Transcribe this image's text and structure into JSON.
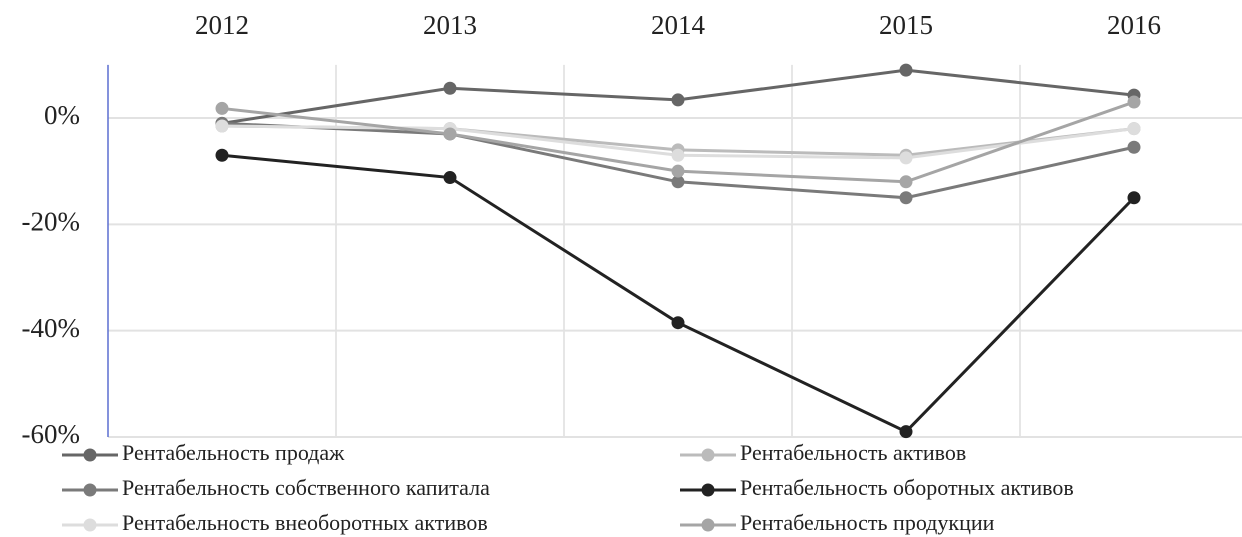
{
  "chart_data": {
    "type": "line",
    "categories": [
      "2012",
      "2013",
      "2014",
      "2015",
      "2016"
    ],
    "series": [
      {
        "name": "Рентабельность продаж",
        "color": "#666666",
        "values": [
          -1,
          5.6,
          3.4,
          9,
          4.3
        ]
      },
      {
        "name": "Рентабельность активов",
        "color": "#bbbbbb",
        "values": [
          -1.5,
          -2,
          -6,
          -7,
          -2
        ]
      },
      {
        "name": "Рентабельность собственного капитала",
        "color": "#7a7a7a",
        "values": [
          -1,
          -3,
          -12,
          -15,
          -5.5
        ]
      },
      {
        "name": "Рентабельность оборотных активов",
        "color": "#222222",
        "values": [
          -7,
          -11.2,
          -38.5,
          -59,
          -15
        ]
      },
      {
        "name": "Рентабельность внеоборотных активов",
        "color": "#dddddd",
        "values": [
          -1.5,
          -2,
          -7,
          -7.5,
          -2
        ]
      },
      {
        "name": "Рентабельность продукции",
        "color": "#a5a5a5",
        "values": [
          1.8,
          -3,
          -10,
          -12,
          3
        ]
      }
    ],
    "ylim": [
      -60,
      10
    ],
    "yticks": [
      {
        "value": 0,
        "label": "0%"
      },
      {
        "value": -20,
        "label": "-20%"
      },
      {
        "value": -40,
        "label": "-40%"
      },
      {
        "value": -60,
        "label": "-60%"
      }
    ],
    "grid": true
  }
}
